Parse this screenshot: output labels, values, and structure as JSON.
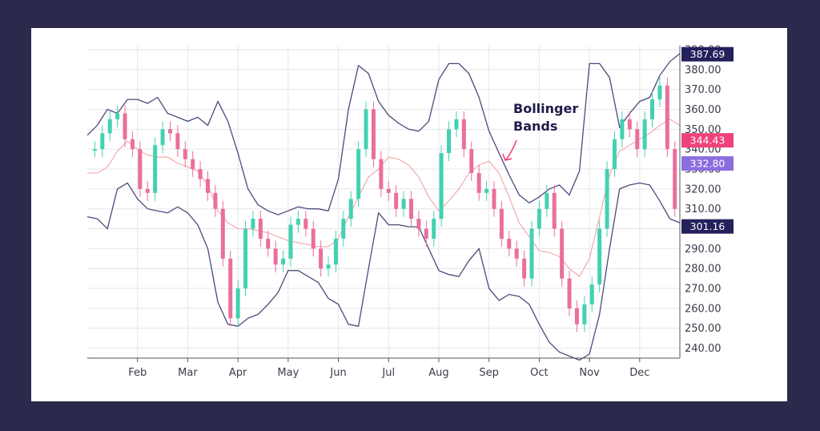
{
  "chart_data": {
    "type": "line",
    "title": "",
    "xlabel": "",
    "ylabel": "",
    "ylim": [
      235,
      392
    ],
    "y_ticks": [
      240,
      250,
      260,
      270,
      280,
      290,
      300,
      310,
      320,
      330,
      340,
      350,
      360,
      370,
      380,
      390
    ],
    "y_tick_labels": [
      "240.00",
      "250.00",
      "260.00",
      "270.00",
      "280.00",
      "290.00",
      "300.00",
      "310.00",
      "320.00",
      "330.00",
      "340.00",
      "350.00",
      "360.00",
      "370.00",
      "380.00",
      "390.00"
    ],
    "x_tick_labels": [
      "Feb",
      "Mar",
      "Apr",
      "May",
      "Jun",
      "Jul",
      "Aug",
      "Sep",
      "Oct",
      "Nov",
      "Dec"
    ],
    "x_tick_positions": [
      1.7,
      2.7,
      3.7,
      4.7,
      5.7,
      6.7,
      7.7,
      8.7,
      9.7,
      10.7,
      11.7
    ],
    "x_range": [
      0.7,
      12.5
    ],
    "grid": true,
    "annotation": {
      "text": [
        "Bollinger",
        "Bands"
      ],
      "x": 8.7,
      "y": 358
    },
    "price_badges": [
      {
        "label": "387.69",
        "value": 387.69,
        "color": "#23205c"
      },
      {
        "label": "344.43",
        "value": 344.43,
        "color": "#f0427a"
      },
      {
        "label": "332.80",
        "value": 332.8,
        "color": "#8a6ee0"
      },
      {
        "label": "301.16",
        "value": 301.16,
        "color": "#23205c"
      }
    ],
    "series": [
      {
        "role": "upper-band",
        "color": "#4b4a7a",
        "x": [
          0.7,
          0.9,
          1.1,
          1.3,
          1.5,
          1.7,
          1.9,
          2.1,
          2.3,
          2.5,
          2.7,
          2.9,
          3.1,
          3.3,
          3.5,
          3.7,
          3.9,
          4.1,
          4.3,
          4.5,
          4.7,
          4.9,
          5.1,
          5.3,
          5.5,
          5.7,
          5.9,
          6.1,
          6.3,
          6.5,
          6.7,
          6.9,
          7.1,
          7.3,
          7.5,
          7.7,
          7.9,
          8.1,
          8.3,
          8.5,
          8.7,
          8.9,
          9.1,
          9.3,
          9.5,
          9.7,
          9.9,
          10.1,
          10.3,
          10.5,
          10.7,
          10.9,
          11.1,
          11.3,
          11.5,
          11.7,
          11.9,
          12.1,
          12.3,
          12.5
        ],
        "values": [
          347,
          352,
          360,
          358,
          365,
          365,
          363,
          366,
          358,
          356,
          354,
          356,
          352,
          364,
          354,
          338,
          320,
          312,
          309,
          307,
          309,
          311,
          310,
          310,
          309,
          325,
          360,
          382,
          378,
          364,
          357,
          353,
          350,
          349,
          354,
          375,
          383,
          383,
          378,
          366,
          349,
          338,
          327,
          317,
          313,
          316,
          320,
          322,
          317,
          329,
          383,
          383,
          376,
          351,
          358,
          364,
          366,
          377,
          384,
          388
        ]
      },
      {
        "role": "lower-band",
        "color": "#4b4a7a",
        "x": [
          0.7,
          0.9,
          1.1,
          1.3,
          1.5,
          1.7,
          1.9,
          2.1,
          2.3,
          2.5,
          2.7,
          2.9,
          3.1,
          3.3,
          3.5,
          3.7,
          3.9,
          4.1,
          4.3,
          4.5,
          4.7,
          4.9,
          5.1,
          5.3,
          5.5,
          5.7,
          5.9,
          6.1,
          6.3,
          6.5,
          6.7,
          6.9,
          7.1,
          7.3,
          7.5,
          7.7,
          7.9,
          8.1,
          8.3,
          8.5,
          8.7,
          8.9,
          9.1,
          9.3,
          9.5,
          9.7,
          9.9,
          10.1,
          10.3,
          10.5,
          10.7,
          10.9,
          11.1,
          11.3,
          11.5,
          11.7,
          11.9,
          12.1,
          12.3,
          12.5
        ],
        "values": [
          306,
          305,
          300,
          320,
          323,
          315,
          310,
          309,
          308,
          311,
          308,
          302,
          290,
          263,
          252,
          251,
          255,
          257,
          262,
          268,
          279,
          279,
          276,
          273,
          265,
          262,
          252,
          251,
          280,
          308,
          302,
          302,
          301,
          301,
          290,
          279,
          277,
          276,
          284,
          290,
          270,
          264,
          267,
          266,
          262,
          252,
          243,
          238,
          236,
          234,
          237,
          257,
          290,
          320,
          322,
          323,
          322,
          314,
          305,
          303
        ]
      },
      {
        "role": "middle-band",
        "color": "#f4a3a3",
        "x": [
          0.7,
          0.9,
          1.1,
          1.3,
          1.5,
          1.7,
          1.9,
          2.1,
          2.3,
          2.5,
          2.7,
          2.9,
          3.1,
          3.3,
          3.5,
          3.7,
          3.9,
          4.1,
          4.3,
          4.5,
          4.7,
          4.9,
          5.1,
          5.3,
          5.5,
          5.7,
          5.9,
          6.1,
          6.3,
          6.5,
          6.7,
          6.9,
          7.1,
          7.3,
          7.5,
          7.7,
          7.9,
          8.1,
          8.3,
          8.5,
          8.7,
          8.9,
          9.1,
          9.3,
          9.5,
          9.7,
          9.9,
          10.1,
          10.3,
          10.5,
          10.7,
          10.9,
          11.1,
          11.3,
          11.5,
          11.7,
          11.9,
          12.1,
          12.3,
          12.5
        ],
        "values": [
          328,
          328,
          331,
          339,
          344,
          340,
          337,
          336,
          336,
          333,
          331,
          329,
          322,
          309,
          303,
          300,
          300,
          299,
          298,
          296,
          294,
          293,
          292,
          291,
          291,
          295,
          306,
          316,
          326,
          330,
          336,
          335,
          332,
          326,
          316,
          309,
          314,
          320,
          328,
          332,
          334,
          328,
          316,
          303,
          296,
          289,
          288,
          286,
          280,
          276,
          285,
          306,
          327,
          339,
          342,
          345,
          348,
          352,
          355,
          352
        ]
      },
      {
        "role": "price-candles",
        "color": "#ea6f9a",
        "x": [
          0.85,
          1.0,
          1.15,
          1.3,
          1.45,
          1.6,
          1.75,
          1.9,
          2.05,
          2.2,
          2.35,
          2.5,
          2.65,
          2.8,
          2.95,
          3.1,
          3.25,
          3.4,
          3.55,
          3.7,
          3.85,
          4.0,
          4.15,
          4.3,
          4.45,
          4.6,
          4.75,
          4.9,
          5.05,
          5.2,
          5.35,
          5.5,
          5.65,
          5.8,
          5.95,
          6.1,
          6.25,
          6.4,
          6.55,
          6.7,
          6.85,
          7.0,
          7.15,
          7.3,
          7.45,
          7.6,
          7.75,
          7.9,
          8.05,
          8.2,
          8.35,
          8.5,
          8.65,
          8.8,
          8.95,
          9.1,
          9.25,
          9.4,
          9.55,
          9.7,
          9.85,
          10.0,
          10.15,
          10.3,
          10.45,
          10.6,
          10.75,
          10.9,
          11.05,
          11.2,
          11.35,
          11.5,
          11.65,
          11.8,
          11.95,
          12.1,
          12.25,
          12.4
        ],
        "values": [
          340,
          348,
          355,
          358,
          345,
          340,
          320,
          318,
          342,
          350,
          348,
          340,
          335,
          330,
          325,
          318,
          310,
          285,
          255,
          270,
          300,
          305,
          295,
          290,
          282,
          285,
          302,
          305,
          300,
          290,
          280,
          282,
          295,
          305,
          315,
          340,
          360,
          335,
          320,
          318,
          310,
          315,
          305,
          300,
          295,
          305,
          338,
          350,
          355,
          340,
          328,
          318,
          320,
          310,
          295,
          290,
          285,
          275,
          300,
          310,
          318,
          300,
          275,
          260,
          252,
          262,
          272,
          300,
          330,
          345,
          355,
          350,
          340,
          355,
          365,
          372,
          340,
          310
        ]
      }
    ]
  }
}
